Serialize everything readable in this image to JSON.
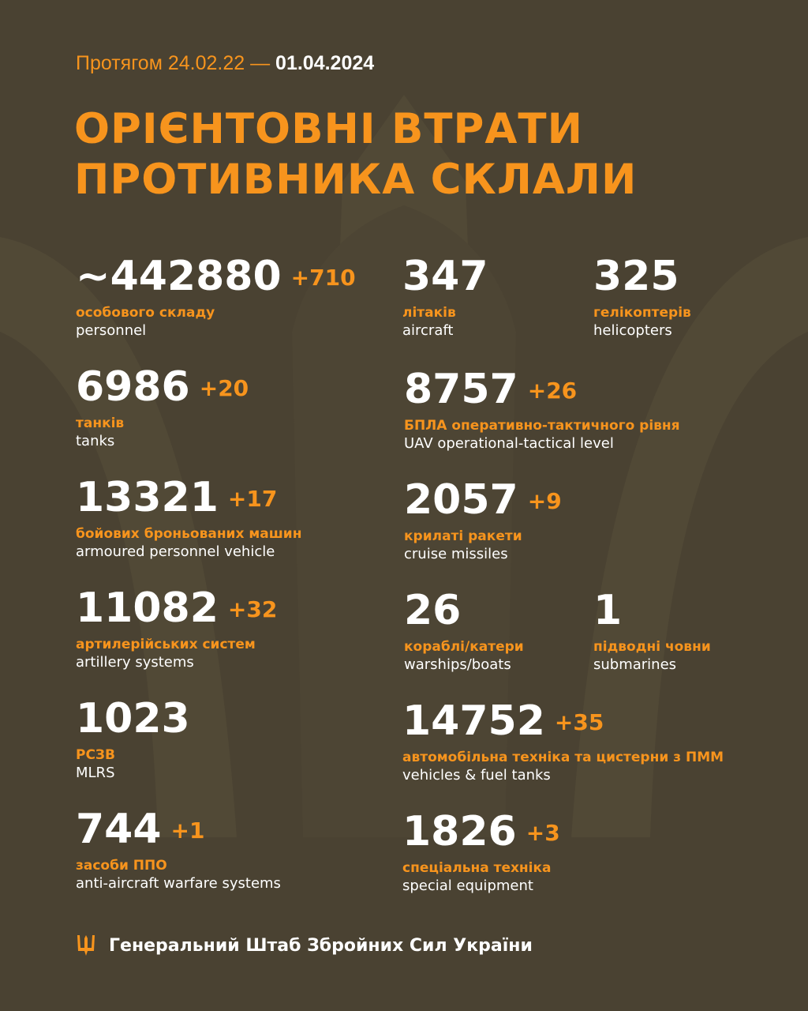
{
  "header": {
    "period_prefix": "Протягом 24.02.22 —",
    "date": "01.04.2024",
    "title_line1": "ОРІЄНТОВНІ ВТРАТИ",
    "title_line2": "ПРОТИВНИКА СКЛАЛИ"
  },
  "colors": {
    "background": "#4a4232",
    "accent": "#f7941d",
    "text": "#ffffff"
  },
  "stats": [
    {
      "value": "~442880",
      "increase": "+710",
      "label_ua": "особового складу",
      "label_en": "personnel"
    },
    {
      "value": "347",
      "increase": "",
      "label_ua": "літаків",
      "label_en": "aircraft"
    },
    {
      "value": "325",
      "increase": "",
      "label_ua": "гелікоптерів",
      "label_en": "helicopters"
    },
    {
      "value": "6986",
      "increase": "+20",
      "label_ua": "танків",
      "label_en": "tanks"
    },
    {
      "value": "8757",
      "increase": "+26",
      "label_ua": "БПЛА оперативно-тактичного рівня",
      "label_en": "UAV operational-tactical level"
    },
    {
      "value": "13321",
      "increase": "+17",
      "label_ua": "бойових броньованих машин",
      "label_en": "armoured personnel vehicle"
    },
    {
      "value": "2057",
      "increase": "+9",
      "label_ua": "крилаті ракети",
      "label_en": "cruise missiles"
    },
    {
      "value": "11082",
      "increase": "+32",
      "label_ua": "артилерійських систем",
      "label_en": "artillery systems"
    },
    {
      "value": "26",
      "increase": "",
      "label_ua": "кораблі/катери",
      "label_en": "warships/boats"
    },
    {
      "value": "1",
      "increase": "",
      "label_ua": "підводні човни",
      "label_en": "submarines"
    },
    {
      "value": "1023",
      "increase": "",
      "label_ua": "РСЗВ",
      "label_en": "MLRS"
    },
    {
      "value": "14752",
      "increase": "+35",
      "label_ua": "автомобільна техніка та цистерни з ПММ",
      "label_en": "vehicles & fuel tanks"
    },
    {
      "value": "744",
      "increase": "+1",
      "label_ua": "засоби ППО",
      "label_en": "anti-aircraft warfare systems"
    },
    {
      "value": "1826",
      "increase": "+3",
      "label_ua": "спеціальна техніка",
      "label_en": "special equipment"
    }
  ],
  "footer": {
    "icon": "trident-icon",
    "text": "Генеральний Штаб Збройних Сил України"
  }
}
